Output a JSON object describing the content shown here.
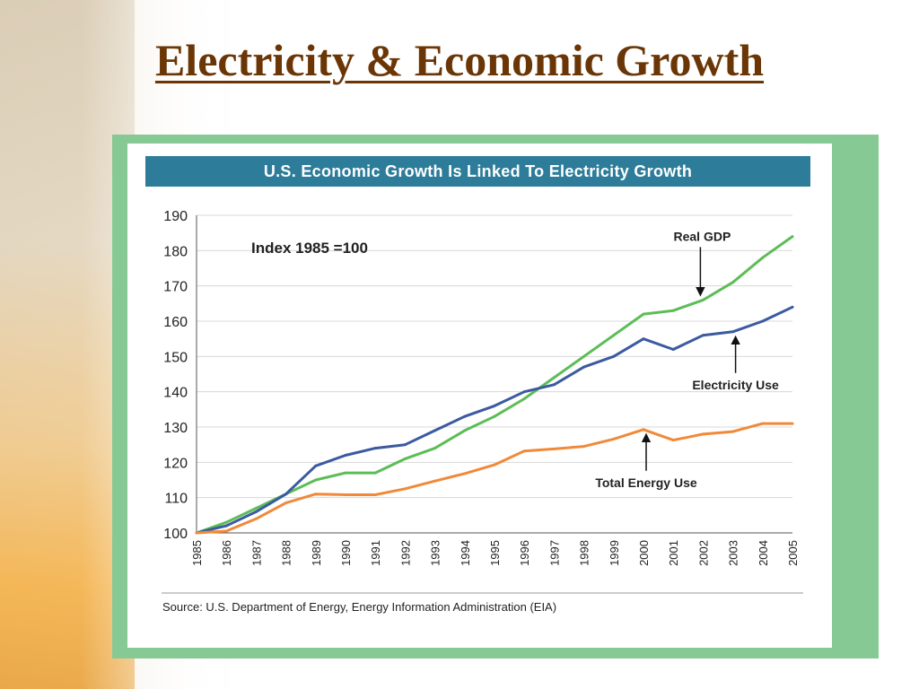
{
  "slide": {
    "title": "Electricity & Economic Growth"
  },
  "chart_data": {
    "type": "line",
    "title": "U.S. Economic Growth Is Linked To Electricity Growth",
    "index_note": "Index 1985 =100",
    "source": "Source: U.S. Department of Energy, Energy Information Administration (EIA)",
    "x": [
      "1985",
      "1986",
      "1987",
      "1988",
      "1989",
      "1990",
      "1991",
      "1992",
      "1993",
      "1994",
      "1995",
      "1996",
      "1997",
      "1998",
      "1999",
      "2000",
      "2001",
      "2002",
      "2003",
      "2004",
      "2005"
    ],
    "ylim": [
      100,
      190
    ],
    "yticks": [
      100,
      110,
      120,
      130,
      140,
      150,
      160,
      170,
      180,
      190
    ],
    "grid": true,
    "series": [
      {
        "name": "Real GDP",
        "color": "#5cbd57",
        "values": [
          100,
          103,
          107,
          111,
          115,
          117,
          117,
          121,
          124,
          129,
          133,
          138,
          144,
          150,
          156,
          162,
          163,
          166,
          171,
          178,
          184
        ]
      },
      {
        "name": "Electricity Use",
        "color": "#3b5aa0",
        "values": [
          100,
          102,
          106,
          111,
          119,
          122,
          124,
          125,
          129,
          133,
          136,
          140,
          142,
          147,
          150,
          155,
          152,
          156,
          157,
          160,
          164
        ]
      },
      {
        "name": "Total Energy Use",
        "color": "#f08a3a",
        "values": [
          100,
          100.5,
          104,
          108.5,
          111,
          110.8,
          110.8,
          112.5,
          114.7,
          116.8,
          119.3,
          123.2,
          123.8,
          124.5,
          126.6,
          129.3,
          126.3,
          128,
          128.7,
          131,
          131
        ]
      }
    ],
    "annotations": [
      {
        "text": "Real GDP",
        "series": "Real GDP",
        "year": "2002",
        "direction": "down"
      },
      {
        "text": "Electricity Use",
        "series": "Electricity Use",
        "year": "2003",
        "direction": "up"
      },
      {
        "text": "Total Energy Use",
        "series": "Total Energy Use",
        "year": "2000",
        "direction": "up"
      }
    ]
  }
}
